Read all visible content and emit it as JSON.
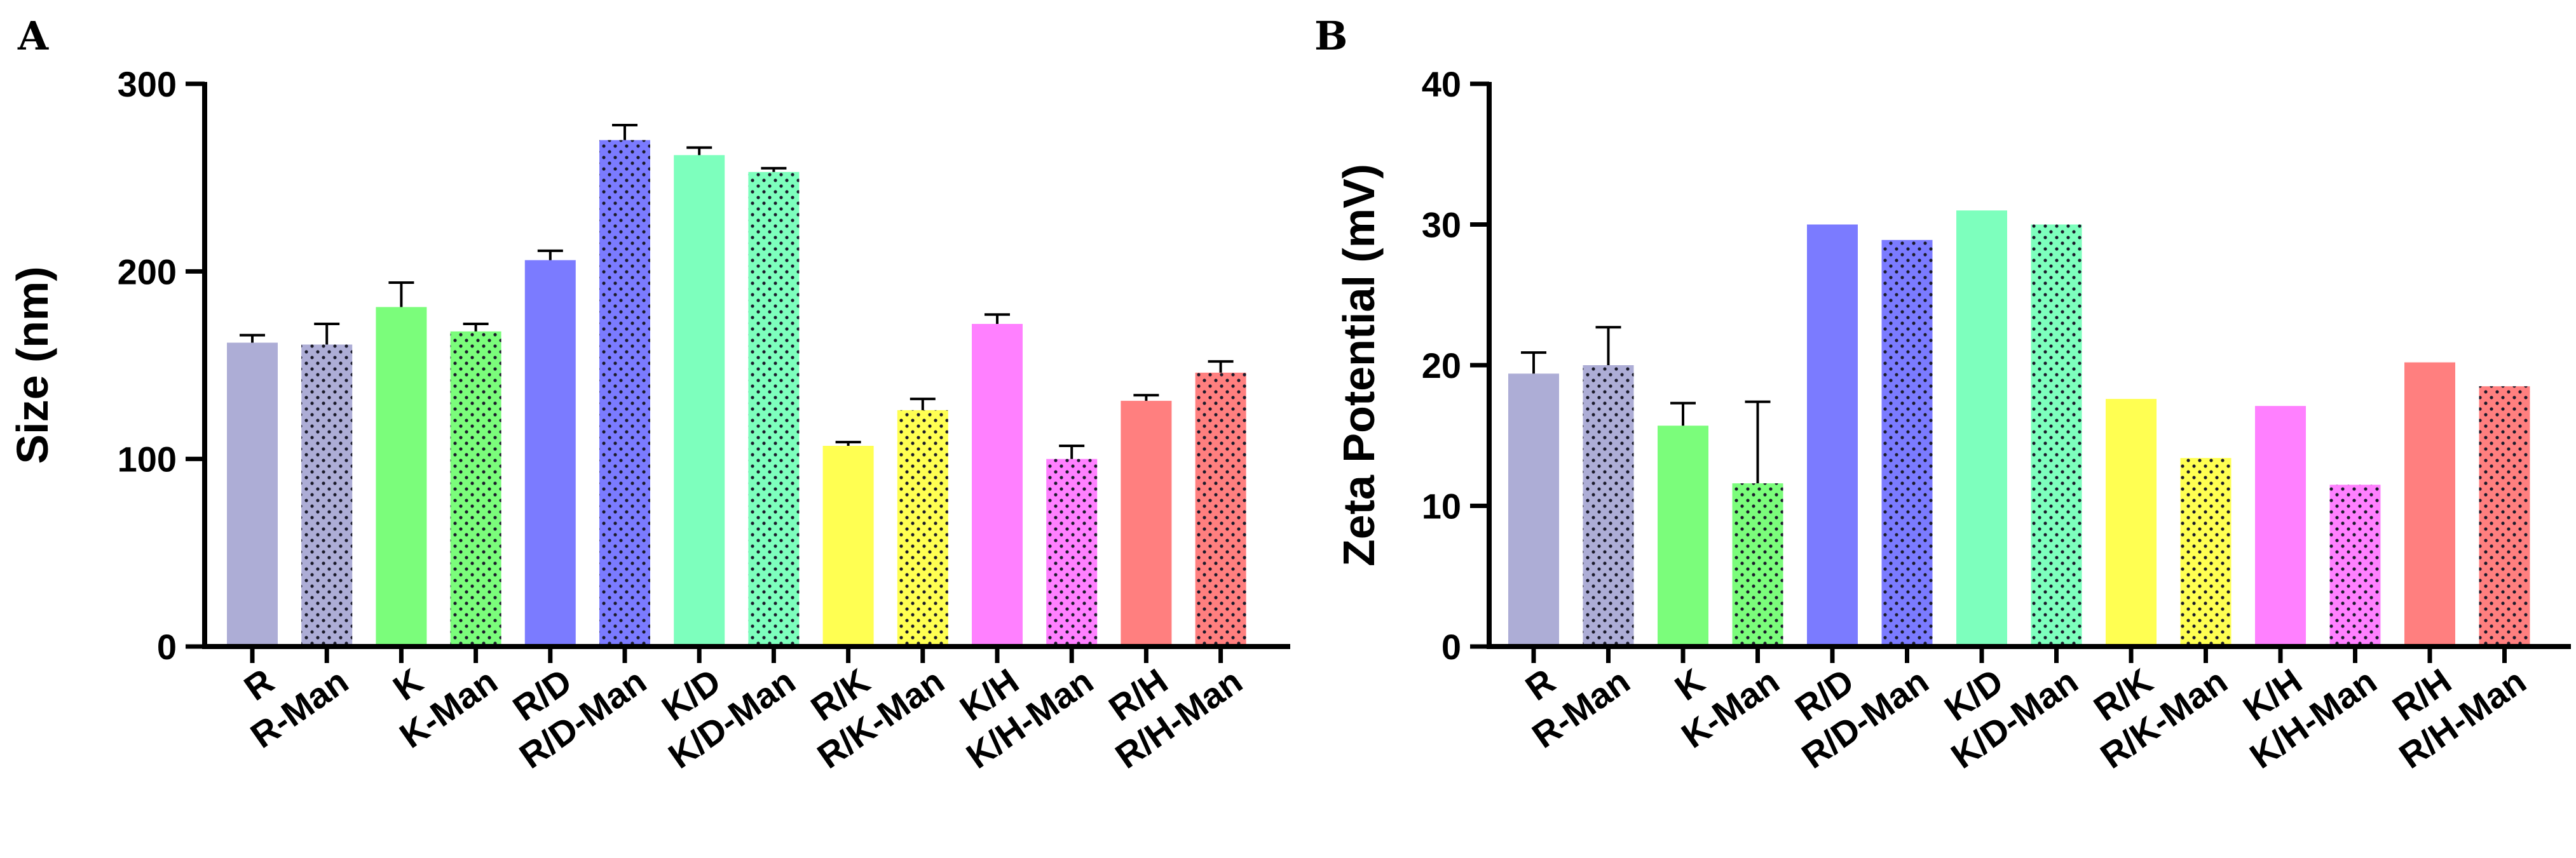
{
  "chart_data": [
    {
      "type": "bar",
      "panel": "A",
      "ylabel": "Size (nm)",
      "xlabel": "",
      "ylim": [
        0,
        300
      ],
      "yticks": [
        "0",
        "100",
        "200",
        "300"
      ],
      "categories": [
        "R",
        "R-Man",
        "K",
        "K-Man",
        "R/D",
        "R/D-Man",
        "K/D",
        "K/D-Man",
        "R/K",
        "R/K-Man",
        "K/H",
        "K/H-Man",
        "R/H",
        "R/H-Man"
      ],
      "values": [
        162,
        161,
        181,
        168,
        206,
        270,
        262,
        253,
        107,
        126,
        172,
        100,
        131,
        146
      ],
      "errors": [
        4,
        11,
        13,
        4,
        5,
        8,
        4,
        2,
        2,
        6,
        5,
        7,
        3,
        6
      ],
      "colors": [
        "#adadd6",
        "#adadd6",
        "#7bfd7b",
        "#7bfd7b",
        "#7b7bff",
        "#7b7bff",
        "#7dffbd",
        "#7dffbd",
        "#ffff52",
        "#ffff52",
        "#ff80ff",
        "#ff80ff",
        "#ff7f7f",
        "#ff7f7f"
      ],
      "dotted": [
        false,
        true,
        false,
        true,
        false,
        true,
        false,
        true,
        false,
        true,
        false,
        true,
        false,
        true
      ]
    },
    {
      "type": "bar",
      "panel": "B",
      "ylabel": "Zeta Potential (mV)",
      "xlabel": "",
      "ylim": [
        0,
        40
      ],
      "yticks": [
        "0",
        "10",
        "20",
        "30",
        "40"
      ],
      "categories": [
        "R",
        "R-Man",
        "K",
        "K-Man",
        "R/D",
        "R/D-Man",
        "K/D",
        "K/D-Man",
        "R/K",
        "R/K-Man",
        "K/H",
        "K/H-Man",
        "R/H",
        "R/H-Man"
      ],
      "values": [
        19.4,
        20.0,
        15.7,
        11.6,
        30.0,
        28.9,
        31.0,
        30.0,
        17.6,
        13.4,
        17.1,
        11.5,
        20.2,
        18.5
      ],
      "errors": [
        1.5,
        2.7,
        1.6,
        5.8,
        0,
        0,
        0,
        0,
        0,
        0,
        0,
        0,
        0,
        0
      ],
      "colors": [
        "#adadd6",
        "#adadd6",
        "#7bfd7b",
        "#7bfd7b",
        "#7b7bff",
        "#7b7bff",
        "#7dffbd",
        "#7dffbd",
        "#ffff52",
        "#ffff52",
        "#ff80ff",
        "#ff80ff",
        "#ff7f7f",
        "#ff7f7f"
      ],
      "dotted": [
        false,
        true,
        false,
        true,
        false,
        true,
        false,
        true,
        false,
        true,
        false,
        true,
        false,
        true
      ]
    }
  ]
}
